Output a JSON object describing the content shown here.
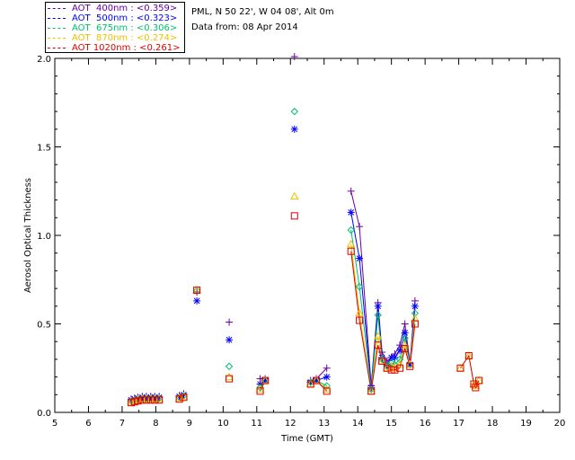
{
  "station": {
    "title": "PML, N 50 22', W 04 08', Alt 0m",
    "date": "Data from: 08 Apr 2014"
  },
  "legend": [
    {
      "label": "AOT  400nm : <0.359>",
      "color": "#6a00a0"
    },
    {
      "label": "AOT  500nm : <0.323>",
      "color": "#0000ff"
    },
    {
      "label": "AOT  675nm : <0.306>",
      "color": "#00c070"
    },
    {
      "label": "AOT  870nm : <0.274>",
      "color": "#f0c000"
    },
    {
      "label": "AOT 1020nm : <0.261>",
      "color": "#e00000"
    }
  ],
  "chart_data": {
    "type": "scatter",
    "xlabel": "Time (GMT)",
    "ylabel": "Aerosol Optical Thickness",
    "xlim": [
      5,
      20
    ],
    "ylim": [
      0,
      2.0
    ],
    "xticks": [
      "5",
      "6",
      "7",
      "8",
      "9",
      "10",
      "11",
      "12",
      "13",
      "14",
      "15",
      "16",
      "17",
      "18",
      "19",
      "20"
    ],
    "yticks": [
      "0.0",
      "0.5",
      "1.0",
      "1.5",
      "2.0"
    ],
    "series": [
      {
        "name": "AOT  400nm",
        "color": "#6a00a0",
        "marker": "plus",
        "x": [
          7.27,
          7.37,
          7.47,
          7.6,
          7.72,
          7.85,
          7.97,
          8.1,
          8.7,
          8.83,
          9.22,
          10.18,
          11.1,
          11.25,
          12.12,
          12.6,
          12.77,
          13.08,
          13.8,
          14.05,
          14.4,
          14.6,
          14.72,
          14.87,
          15.0,
          15.1,
          15.25,
          15.4,
          15.55,
          15.7
        ],
        "y": [
          0.075,
          0.08,
          0.085,
          0.09,
          0.09,
          0.09,
          0.09,
          0.09,
          0.095,
          0.105,
          0.68,
          0.51,
          0.19,
          0.19,
          2.01,
          0.18,
          0.19,
          0.25,
          1.25,
          1.05,
          0.15,
          0.62,
          0.34,
          0.29,
          0.31,
          0.33,
          0.38,
          0.5,
          0.28,
          0.63
        ]
      },
      {
        "name": "AOT  500nm",
        "color": "#0000ff",
        "marker": "star",
        "x": [
          7.27,
          7.37,
          7.47,
          7.6,
          7.72,
          7.85,
          7.97,
          8.1,
          8.7,
          8.83,
          9.22,
          10.18,
          11.1,
          11.25,
          12.12,
          12.6,
          12.77,
          13.08,
          13.8,
          14.05,
          14.4,
          14.6,
          14.72,
          14.87,
          15.0,
          15.1,
          15.25,
          15.4,
          15.55,
          15.7
        ],
        "y": [
          0.07,
          0.075,
          0.08,
          0.085,
          0.085,
          0.085,
          0.085,
          0.085,
          0.09,
          0.1,
          0.63,
          0.41,
          0.16,
          0.18,
          1.6,
          0.17,
          0.18,
          0.2,
          1.13,
          0.87,
          0.14,
          0.6,
          0.31,
          0.27,
          0.31,
          0.31,
          0.35,
          0.45,
          0.27,
          0.6
        ]
      },
      {
        "name": "AOT  675nm",
        "color": "#00c070",
        "marker": "diamond",
        "x": [
          7.27,
          7.37,
          7.47,
          7.6,
          7.72,
          7.85,
          7.97,
          8.1,
          8.7,
          8.83,
          9.22,
          10.18,
          11.1,
          11.25,
          12.12,
          12.6,
          12.77,
          13.08,
          13.8,
          14.05,
          14.4,
          14.6,
          14.72,
          14.87,
          15.0,
          15.1,
          15.25,
          15.4,
          15.55,
          15.7
        ],
        "y": [
          0.065,
          0.07,
          0.075,
          0.08,
          0.08,
          0.08,
          0.08,
          0.08,
          0.085,
          0.095,
          0.69,
          0.26,
          0.14,
          0.18,
          1.7,
          0.17,
          0.18,
          0.15,
          1.03,
          0.71,
          0.13,
          0.55,
          0.3,
          0.26,
          0.28,
          0.27,
          0.3,
          0.42,
          0.27,
          0.56
        ]
      },
      {
        "name": "AOT  870nm",
        "color": "#f0c000",
        "marker": "triangle",
        "x": [
          7.27,
          7.37,
          7.47,
          7.6,
          7.72,
          7.85,
          7.97,
          8.1,
          8.7,
          8.83,
          9.22,
          10.18,
          11.1,
          11.25,
          12.12,
          12.6,
          12.77,
          13.08,
          13.8,
          14.05,
          14.4,
          14.6,
          14.72,
          14.87,
          15.0,
          15.1,
          15.25,
          15.4,
          15.55,
          15.7,
          17.05,
          17.3,
          17.45,
          17.5,
          17.6
        ],
        "y": [
          0.06,
          0.065,
          0.07,
          0.075,
          0.075,
          0.075,
          0.075,
          0.075,
          0.08,
          0.09,
          0.69,
          0.2,
          0.13,
          0.18,
          1.22,
          0.16,
          0.18,
          0.13,
          0.95,
          0.56,
          0.12,
          0.43,
          0.29,
          0.25,
          0.26,
          0.25,
          0.27,
          0.38,
          0.27,
          0.53,
          0.25,
          0.32,
          0.16,
          0.15,
          0.18
        ]
      },
      {
        "name": "AOT 1020nm",
        "color": "#e00000",
        "marker": "square",
        "x": [
          7.27,
          7.37,
          7.47,
          7.6,
          7.72,
          7.85,
          7.97,
          8.1,
          8.7,
          8.83,
          9.22,
          10.18,
          11.1,
          11.25,
          12.12,
          12.6,
          12.77,
          13.08,
          13.8,
          14.05,
          14.4,
          14.6,
          14.72,
          14.87,
          15.0,
          15.1,
          15.25,
          15.4,
          15.55,
          15.7,
          17.05,
          17.3,
          17.45,
          17.5,
          17.6
        ],
        "y": [
          0.055,
          0.06,
          0.065,
          0.07,
          0.07,
          0.07,
          0.07,
          0.07,
          0.075,
          0.085,
          0.69,
          0.19,
          0.12,
          0.18,
          1.11,
          0.16,
          0.18,
          0.12,
          0.91,
          0.52,
          0.12,
          0.38,
          0.29,
          0.25,
          0.24,
          0.24,
          0.25,
          0.36,
          0.26,
          0.5,
          0.25,
          0.32,
          0.16,
          0.14,
          0.18
        ]
      }
    ]
  }
}
